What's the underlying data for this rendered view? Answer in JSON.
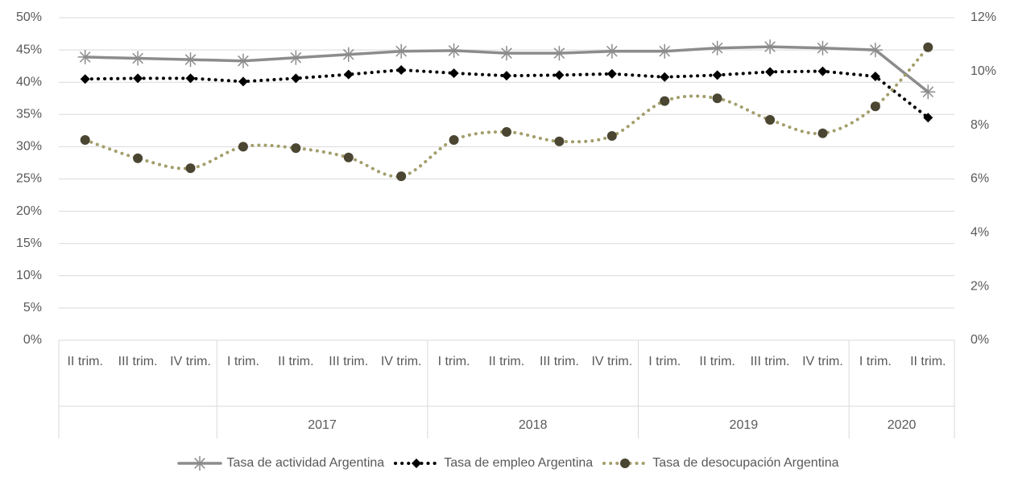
{
  "chart_data": {
    "type": "line",
    "categories": [
      "II trim.",
      "III trim.",
      "IV trim.",
      "I trim.",
      "II trim.",
      "III trim.",
      "IV trim.",
      "I trim.",
      "II trim.",
      "III trim.",
      "IV trim.",
      "I trim.",
      "II trim.",
      "III trim.",
      "IV trim.",
      "I trim.",
      "II trim."
    ],
    "groups": [
      {
        "span": 3
      },
      {
        "label": "2017",
        "span": 4
      },
      {
        "label": "2018",
        "span": 4
      },
      {
        "label": "2019",
        "span": 4
      },
      {
        "label": "2020",
        "span": 2
      }
    ],
    "series": [
      {
        "name": "Tasa de actividad Argentina",
        "color": "#8c8c8c",
        "marker": "asterisk",
        "style": "solid",
        "values": [
          43.9,
          43.7,
          43.5,
          43.3,
          43.8,
          44.3,
          44.8,
          44.9,
          44.5,
          44.5,
          44.8,
          44.8,
          45.3,
          45.5,
          45.3,
          45.0,
          38.5
        ]
      },
      {
        "name": "Tasa de empleo Argentina",
        "color": "#000000",
        "marker": "diamond",
        "style": "dotted",
        "values": [
          40.5,
          40.6,
          40.6,
          40.1,
          40.6,
          41.2,
          41.9,
          41.4,
          41.0,
          41.1,
          41.3,
          40.8,
          41.1,
          41.6,
          41.7,
          40.9,
          34.5
        ]
      },
      {
        "name": "Tasa de desocupación Argentina",
        "color": "#a39e6b",
        "marker_color": "#4a4632",
        "marker": "circle",
        "style": "dotted",
        "smooth": true,
        "axis": "y2",
        "values": [
          7.45,
          6.77,
          6.4,
          7.2,
          7.15,
          6.8,
          6.1,
          7.45,
          7.75,
          7.4,
          7.6,
          8.9,
          9.0,
          8.2,
          7.7,
          8.7,
          10.9
        ]
      }
    ],
    "ylim": [
      0,
      50
    ],
    "yticks": [
      {
        "value": 0,
        "label": "0%"
      },
      {
        "value": 5,
        "label": "5%"
      },
      {
        "value": 10,
        "label": "10%"
      },
      {
        "value": 15,
        "label": "15%"
      },
      {
        "value": 20,
        "label": "20%"
      },
      {
        "value": 25,
        "label": "25%"
      },
      {
        "value": 30,
        "label": "30%"
      },
      {
        "value": 35,
        "label": "35%"
      },
      {
        "value": 40,
        "label": "40%"
      },
      {
        "value": 45,
        "label": "45%"
      },
      {
        "value": 50,
        "label": "50%"
      }
    ],
    "y2lim": [
      0,
      12
    ],
    "y2ticks": [
      {
        "value": 0,
        "label": "0%"
      },
      {
        "value": 2,
        "label": "2%"
      },
      {
        "value": 4,
        "label": "4%"
      },
      {
        "value": 6,
        "label": "6%"
      },
      {
        "value": 8,
        "label": "8%"
      },
      {
        "value": 10,
        "label": "10%"
      },
      {
        "value": 12,
        "label": "12%"
      }
    ],
    "grid": true,
    "legend": "bottom"
  }
}
